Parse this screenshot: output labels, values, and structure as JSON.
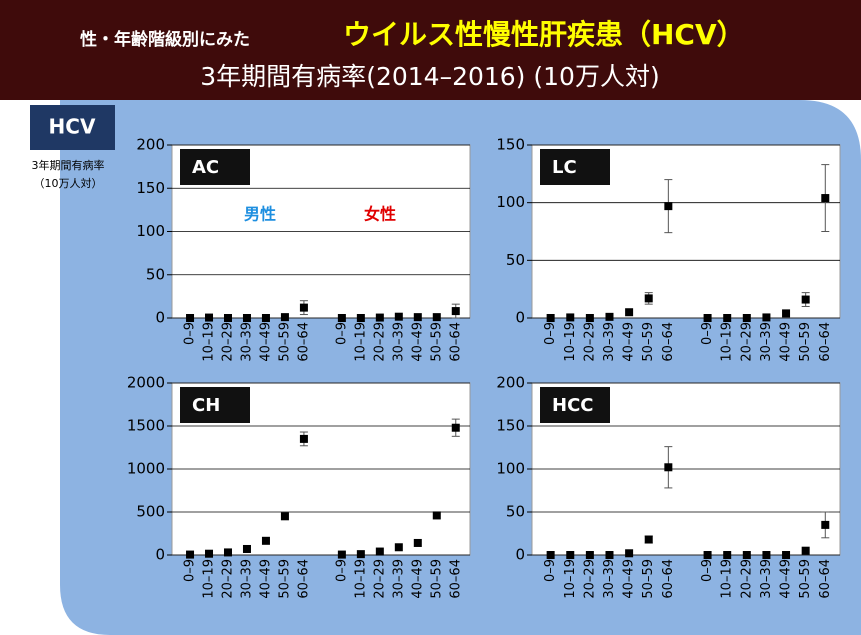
{
  "header": {
    "title_prefix": "性・年齢階級別にみた",
    "title_main": "ウイルス性慢性肝疾患（HCV）",
    "subtitle": "3年期間有病率(2014–2016) (10万人対)"
  },
  "label": "HCV",
  "y_axis_label": [
    "3年期間有病率",
    "（10万人対）"
  ],
  "chart_data": [
    {
      "type": "scatter",
      "title": "AC",
      "categories": [
        "0–9",
        "10–19",
        "20–29",
        "30–39",
        "40–49",
        "50–59",
        "60–64",
        "0–9",
        "10–19",
        "20–29",
        "30–39",
        "40–49",
        "50–59",
        "60–64"
      ],
      "values": [
        0,
        0.5,
        0,
        0,
        0,
        1,
        12,
        0,
        0,
        0.5,
        1.5,
        1,
        1,
        8
      ],
      "errors": [
        0,
        0,
        0,
        0,
        0,
        0,
        8,
        0,
        0,
        0,
        0,
        0,
        0,
        8
      ],
      "ylim": [
        0,
        200
      ],
      "yticks": [
        0,
        50,
        100,
        150,
        200
      ],
      "grid": true,
      "color": "#000000",
      "annotations": [
        {
          "text": "男性",
          "color": "#1e8fe0"
        },
        {
          "text": "女性",
          "color": "#e00000"
        }
      ]
    },
    {
      "type": "scatter",
      "title": "LC",
      "categories": [
        "0–9",
        "10–19",
        "20–29",
        "30–39",
        "40–49",
        "50–59",
        "60–64",
        "0–9",
        "10–19",
        "20–29",
        "30–39",
        "40–49",
        "50–59",
        "60–64"
      ],
      "values": [
        0,
        0.5,
        0,
        1,
        5,
        17,
        97,
        0,
        0,
        0,
        0.5,
        4,
        16,
        104
      ],
      "errors": [
        0,
        0,
        0,
        0,
        0,
        5,
        23,
        0,
        0,
        0,
        0,
        0,
        6,
        29
      ],
      "ylim": [
        0,
        150
      ],
      "yticks": [
        0,
        50,
        100,
        150
      ],
      "grid": true,
      "color": "#000000"
    },
    {
      "type": "scatter",
      "title": "CH",
      "categories": [
        "0–9",
        "10–19",
        "20–29",
        "30–39",
        "40–49",
        "50–59",
        "60–64",
        "0–9",
        "10–19",
        "20–29",
        "30–39",
        "40–49",
        "50–59",
        "60–64"
      ],
      "values": [
        5,
        15,
        30,
        70,
        165,
        450,
        1350,
        5,
        10,
        40,
        90,
        140,
        460,
        1480
      ],
      "errors": [
        0,
        0,
        0,
        0,
        0,
        0,
        80,
        0,
        0,
        0,
        0,
        0,
        0,
        100
      ],
      "ylim": [
        0,
        2000
      ],
      "yticks": [
        0,
        500,
        1000,
        1500,
        2000
      ],
      "grid": true,
      "color": "#000000"
    },
    {
      "type": "scatter",
      "title": "HCC",
      "categories": [
        "0–9",
        "10–19",
        "20–29",
        "30–39",
        "40–49",
        "50–59",
        "60–64",
        "0–9",
        "10–19",
        "20–29",
        "30–39",
        "40–49",
        "50–59",
        "60–64"
      ],
      "values": [
        0,
        0,
        0,
        0,
        2,
        18,
        102,
        0,
        0,
        0,
        0,
        0,
        5,
        35
      ],
      "errors": [
        0,
        0,
        0,
        0,
        0,
        4,
        24,
        0,
        0,
        0,
        0,
        0,
        0,
        15
      ],
      "ylim": [
        0,
        200
      ],
      "yticks": [
        0,
        50,
        100,
        150,
        200
      ],
      "grid": true,
      "color": "#000000"
    }
  ]
}
